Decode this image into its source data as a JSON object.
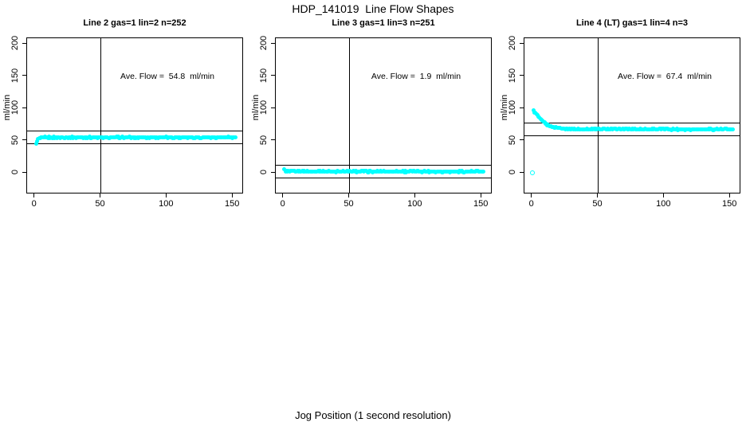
{
  "figure": {
    "title": "HDP_141019  Line Flow Shapes",
    "x_axis_title": "Jog Position (1 second resolution)"
  },
  "axes": {
    "ylabel": "ml/min",
    "x_ticks": [
      0,
      50,
      100,
      150
    ],
    "y_ticks": [
      0,
      50,
      100,
      150,
      200
    ]
  },
  "colors": {
    "points": "#00FFFF",
    "axis": "#000000",
    "background": "#FFFFFF"
  },
  "chart_data": [
    {
      "type": "scatter",
      "title": "Line 2 gas=1 lin=2 n=252",
      "annotation": "Ave. Flow =  54.8  ml/min",
      "ave_flow": 54.8,
      "n": 252,
      "gas": 1,
      "lin": 2,
      "xlim": [
        -6,
        158
      ],
      "ylim": [
        -33,
        209
      ],
      "ref_lines_y": [
        64.8,
        44.8
      ],
      "ref_line_x": 50,
      "series": {
        "name": "flow",
        "x_start": 1,
        "x_end": 152,
        "x_step": 0.75,
        "jitter": 0.9,
        "profile": [
          [
            1,
            45
          ],
          [
            1.7,
            49
          ],
          [
            2.5,
            52
          ],
          [
            3.5,
            53.5
          ],
          [
            5,
            54.4
          ],
          [
            8,
            54.8
          ],
          [
            152,
            54.8
          ]
        ]
      },
      "outlier_points": []
    },
    {
      "type": "scatter",
      "title": "Line 3 gas=1 lin=3 n=251",
      "annotation": "Ave. Flow =  1.9  ml/min",
      "ave_flow": 1.9,
      "n": 251,
      "gas": 1,
      "lin": 3,
      "xlim": [
        -6,
        158
      ],
      "ylim": [
        -33,
        209
      ],
      "ref_lines_y": [
        11.9,
        -8.1
      ],
      "ref_line_x": 50,
      "series": {
        "name": "flow",
        "x_start": 0.7,
        "x_end": 152,
        "x_step": 0.75,
        "jitter": 0.9,
        "profile": [
          [
            0.7,
            5.5
          ],
          [
            1.5,
            3
          ],
          [
            3,
            2.1
          ],
          [
            152,
            1.9
          ]
        ]
      },
      "outlier_points": []
    },
    {
      "type": "scatter",
      "title": "Line 4 (LT) gas=1 lin=4 n=3",
      "annotation": "Ave. Flow =  67.4  ml/min",
      "ave_flow": 67.4,
      "n": 3,
      "gas": 1,
      "lin": 4,
      "xlim": [
        -6,
        158
      ],
      "ylim": [
        -33,
        209
      ],
      "ref_lines_y": [
        77.4,
        57.4
      ],
      "ref_line_x": 50,
      "series": {
        "name": "flow",
        "x_start": 1,
        "x_end": 152,
        "x_step": 0.75,
        "jitter": 0.9,
        "profile": [
          [
            1,
            96
          ],
          [
            2,
            94
          ],
          [
            3,
            91
          ],
          [
            4,
            88.5
          ],
          [
            5,
            86
          ],
          [
            6,
            83.5
          ],
          [
            7,
            81.5
          ],
          [
            8,
            79.5
          ],
          [
            10,
            76.5
          ],
          [
            12,
            74
          ],
          [
            15,
            71.5
          ],
          [
            18,
            70
          ],
          [
            22,
            69
          ],
          [
            27,
            68.2
          ],
          [
            35,
            67.6
          ],
          [
            152,
            67.4
          ]
        ]
      },
      "outlier_points": [
        [
          0.5,
          -1.2
        ]
      ]
    }
  ]
}
